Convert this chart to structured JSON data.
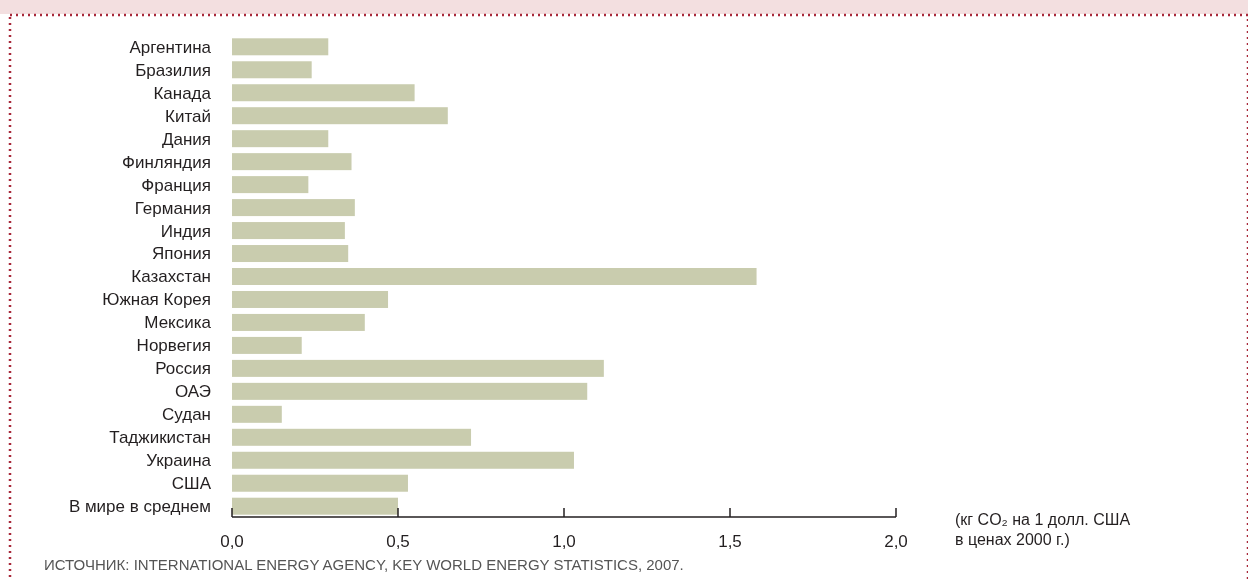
{
  "chart_data": {
    "type": "bar",
    "orientation": "horizontal",
    "categories": [
      "Аргентина",
      "Бразилия",
      "Канада",
      "Китай",
      "Дания",
      "Финляндия",
      "Франция",
      "Германия",
      "Индия",
      "Япония",
      "Казахстан",
      "Южная Корея",
      "Мексика",
      "Норвегия",
      "Россия",
      "ОАЭ",
      "Судан",
      "Таджикистан",
      "Украина",
      "США",
      "В мире в среднем"
    ],
    "values": [
      0.29,
      0.24,
      0.55,
      0.65,
      0.29,
      0.36,
      0.23,
      0.37,
      0.34,
      0.35,
      1.58,
      0.47,
      0.4,
      0.21,
      1.12,
      1.07,
      0.15,
      0.72,
      1.03,
      0.53,
      0.5
    ],
    "color": "#c9ccae",
    "xlim": [
      0,
      2
    ],
    "xticks": [
      {
        "value": 0,
        "label": "0,0"
      },
      {
        "value": 0.5,
        "label": "0,5"
      },
      {
        "value": 1,
        "label": "1,0"
      },
      {
        "value": 1.5,
        "label": "1,5"
      },
      {
        "value": 2,
        "label": "2,0"
      }
    ],
    "xlabel": "(кг CO₂ на 1 долл. США\nв ценах 2000 г.)",
    "annotations": [
      "ИСТОЧНИК: INTERNATIONAL ENERGY AGENCY, KEY WORLD ENERGY STATISTICS, 2007."
    ],
    "grid": false
  }
}
